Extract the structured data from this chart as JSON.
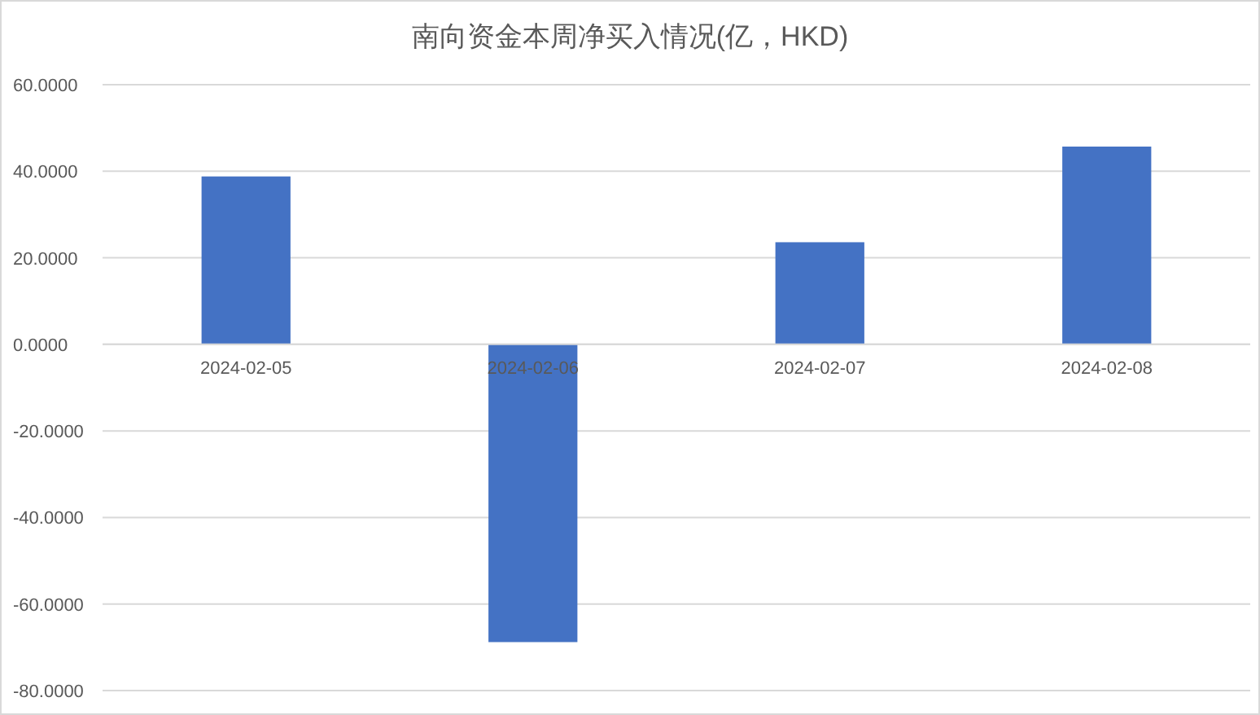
{
  "chart_data": {
    "type": "bar",
    "title": "南向资金本周净买入情况(亿，HKD)",
    "categories": [
      "2024-02-05",
      "2024-02-06",
      "2024-02-07",
      "2024-02-08"
    ],
    "values": [
      38.8,
      -68.8,
      23.6,
      45.7
    ],
    "color": "#4472c4",
    "ylim": [
      -80,
      60
    ],
    "yticks": [
      {
        "value": -80,
        "label": "-80.0000"
      },
      {
        "value": -60,
        "label": "-60.0000"
      },
      {
        "value": -40,
        "label": "-40.0000"
      },
      {
        "value": -20,
        "label": "-20.0000"
      },
      {
        "value": 0,
        "label": "0.0000"
      },
      {
        "value": 20,
        "label": "20.0000"
      },
      {
        "value": 40,
        "label": "40.0000"
      },
      {
        "value": 60,
        "label": "60.0000"
      }
    ],
    "grid": "y"
  }
}
